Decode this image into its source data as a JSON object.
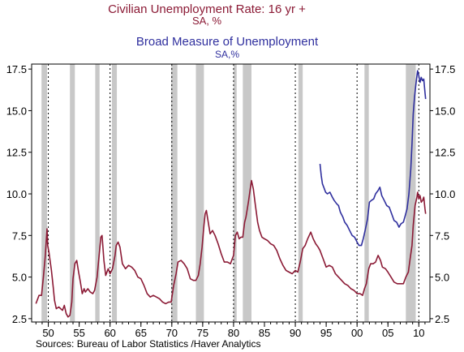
{
  "chart_data": {
    "type": "line",
    "series": [
      {
        "name": "Civilian Unemployment Rate: 16 yr +",
        "subtitle": "SA, %",
        "color": "#8b1a35",
        "points": [
          [
            1948.0,
            3.4
          ],
          [
            1948.5,
            3.9
          ],
          [
            1948.9,
            3.9
          ],
          [
            1949.2,
            5.0
          ],
          [
            1949.5,
            6.2
          ],
          [
            1949.8,
            7.9
          ],
          [
            1949.9,
            6.9
          ],
          [
            1950.1,
            6.5
          ],
          [
            1950.5,
            5.4
          ],
          [
            1950.8,
            4.4
          ],
          [
            1951.0,
            3.6
          ],
          [
            1951.3,
            3.1
          ],
          [
            1951.7,
            3.2
          ],
          [
            1952.0,
            3.1
          ],
          [
            1952.3,
            3.0
          ],
          [
            1952.6,
            3.3
          ],
          [
            1952.9,
            2.8
          ],
          [
            1953.2,
            2.6
          ],
          [
            1953.5,
            2.7
          ],
          [
            1953.8,
            3.5
          ],
          [
            1954.0,
            4.9
          ],
          [
            1954.3,
            5.8
          ],
          [
            1954.6,
            6.0
          ],
          [
            1954.9,
            5.3
          ],
          [
            1955.2,
            4.7
          ],
          [
            1955.5,
            4.0
          ],
          [
            1955.8,
            4.3
          ],
          [
            1956.0,
            4.1
          ],
          [
            1956.4,
            4.3
          ],
          [
            1956.8,
            4.1
          ],
          [
            1957.2,
            4.0
          ],
          [
            1957.5,
            4.2
          ],
          [
            1957.9,
            5.0
          ],
          [
            1958.2,
            6.2
          ],
          [
            1958.5,
            7.4
          ],
          [
            1958.7,
            7.5
          ],
          [
            1959.0,
            6.0
          ],
          [
            1959.3,
            5.1
          ],
          [
            1959.7,
            5.5
          ],
          [
            1960.0,
            5.2
          ],
          [
            1960.4,
            5.5
          ],
          [
            1960.8,
            6.3
          ],
          [
            1961.0,
            6.9
          ],
          [
            1961.3,
            7.1
          ],
          [
            1961.6,
            6.8
          ],
          [
            1962.0,
            5.8
          ],
          [
            1962.5,
            5.5
          ],
          [
            1963.0,
            5.7
          ],
          [
            1963.5,
            5.6
          ],
          [
            1964.0,
            5.4
          ],
          [
            1964.5,
            5.0
          ],
          [
            1965.0,
            4.9
          ],
          [
            1965.5,
            4.5
          ],
          [
            1966.0,
            4.0
          ],
          [
            1966.5,
            3.8
          ],
          [
            1967.0,
            3.9
          ],
          [
            1967.5,
            3.8
          ],
          [
            1968.0,
            3.7
          ],
          [
            1968.5,
            3.5
          ],
          [
            1969.0,
            3.4
          ],
          [
            1969.5,
            3.5
          ],
          [
            1969.9,
            3.5
          ],
          [
            1970.3,
            4.5
          ],
          [
            1970.7,
            5.2
          ],
          [
            1971.0,
            5.9
          ],
          [
            1971.5,
            6.0
          ],
          [
            1972.0,
            5.8
          ],
          [
            1972.5,
            5.5
          ],
          [
            1973.0,
            4.9
          ],
          [
            1973.5,
            4.8
          ],
          [
            1973.9,
            4.8
          ],
          [
            1974.3,
            5.1
          ],
          [
            1974.6,
            5.8
          ],
          [
            1974.9,
            6.8
          ],
          [
            1975.2,
            8.1
          ],
          [
            1975.4,
            8.8
          ],
          [
            1975.6,
            9.0
          ],
          [
            1975.9,
            8.3
          ],
          [
            1976.2,
            7.6
          ],
          [
            1976.6,
            7.8
          ],
          [
            1977.0,
            7.5
          ],
          [
            1977.5,
            7.0
          ],
          [
            1978.0,
            6.4
          ],
          [
            1978.5,
            5.9
          ],
          [
            1979.0,
            5.9
          ],
          [
            1979.5,
            5.8
          ],
          [
            1980.0,
            6.3
          ],
          [
            1980.3,
            7.5
          ],
          [
            1980.6,
            7.7
          ],
          [
            1980.9,
            7.3
          ],
          [
            1981.2,
            7.4
          ],
          [
            1981.5,
            7.4
          ],
          [
            1981.8,
            8.3
          ],
          [
            1982.0,
            8.6
          ],
          [
            1982.4,
            9.5
          ],
          [
            1982.7,
            10.3
          ],
          [
            1982.9,
            10.8
          ],
          [
            1983.2,
            10.3
          ],
          [
            1983.5,
            9.4
          ],
          [
            1983.9,
            8.3
          ],
          [
            1984.2,
            7.8
          ],
          [
            1984.6,
            7.4
          ],
          [
            1985.0,
            7.3
          ],
          [
            1985.5,
            7.2
          ],
          [
            1986.0,
            7.0
          ],
          [
            1986.5,
            6.9
          ],
          [
            1987.0,
            6.6
          ],
          [
            1987.5,
            6.1
          ],
          [
            1988.0,
            5.7
          ],
          [
            1988.5,
            5.4
          ],
          [
            1989.0,
            5.3
          ],
          [
            1989.5,
            5.2
          ],
          [
            1990.0,
            5.4
          ],
          [
            1990.4,
            5.3
          ],
          [
            1990.8,
            5.9
          ],
          [
            1991.2,
            6.7
          ],
          [
            1991.6,
            6.9
          ],
          [
            1992.0,
            7.3
          ],
          [
            1992.5,
            7.7
          ],
          [
            1992.9,
            7.3
          ],
          [
            1993.3,
            7.0
          ],
          [
            1993.7,
            6.8
          ],
          [
            1994.0,
            6.6
          ],
          [
            1994.5,
            6.1
          ],
          [
            1995.0,
            5.6
          ],
          [
            1995.5,
            5.7
          ],
          [
            1996.0,
            5.6
          ],
          [
            1996.5,
            5.2
          ],
          [
            1997.0,
            5.0
          ],
          [
            1997.5,
            4.8
          ],
          [
            1998.0,
            4.6
          ],
          [
            1998.5,
            4.5
          ],
          [
            1999.0,
            4.3
          ],
          [
            1999.5,
            4.2
          ],
          [
            2000.0,
            4.0
          ],
          [
            2000.5,
            4.0
          ],
          [
            2000.9,
            3.9
          ],
          [
            2001.2,
            4.3
          ],
          [
            2001.5,
            4.6
          ],
          [
            2001.9,
            5.5
          ],
          [
            2002.2,
            5.8
          ],
          [
            2002.6,
            5.8
          ],
          [
            2003.0,
            5.9
          ],
          [
            2003.4,
            6.3
          ],
          [
            2003.8,
            6.0
          ],
          [
            2004.1,
            5.6
          ],
          [
            2004.6,
            5.5
          ],
          [
            2005.0,
            5.3
          ],
          [
            2005.5,
            5.0
          ],
          [
            2006.0,
            4.7
          ],
          [
            2006.5,
            4.6
          ],
          [
            2007.0,
            4.6
          ],
          [
            2007.5,
            4.6
          ],
          [
            2007.9,
            5.0
          ],
          [
            2008.3,
            5.3
          ],
          [
            2008.6,
            6.1
          ],
          [
            2008.9,
            6.9
          ],
          [
            2009.1,
            8.1
          ],
          [
            2009.4,
            9.3
          ],
          [
            2009.7,
            9.8
          ],
          [
            2009.8,
            10.1
          ],
          [
            2010.0,
            9.7
          ],
          [
            2010.2,
            9.9
          ],
          [
            2010.4,
            9.5
          ],
          [
            2010.6,
            9.6
          ],
          [
            2010.8,
            9.8
          ],
          [
            2011.0,
            9.1
          ],
          [
            2011.1,
            8.8
          ]
        ]
      },
      {
        "name": "Broad Measure of Unemployment",
        "subtitle": "SA,%",
        "color": "#2f2f9e",
        "points": [
          [
            1994.0,
            11.8
          ],
          [
            1994.2,
            11.1
          ],
          [
            1994.4,
            10.6
          ],
          [
            1994.6,
            10.4
          ],
          [
            1994.9,
            10.1
          ],
          [
            1995.2,
            10.0
          ],
          [
            1995.6,
            10.1
          ],
          [
            1996.0,
            9.8
          ],
          [
            1996.3,
            9.6
          ],
          [
            1996.7,
            9.4
          ],
          [
            1997.0,
            9.3
          ],
          [
            1997.3,
            8.9
          ],
          [
            1997.7,
            8.6
          ],
          [
            1998.0,
            8.3
          ],
          [
            1998.4,
            8.1
          ],
          [
            1998.8,
            7.8
          ],
          [
            1999.2,
            7.5
          ],
          [
            1999.6,
            7.4
          ],
          [
            2000.0,
            7.1
          ],
          [
            2000.3,
            6.9
          ],
          [
            2000.7,
            6.9
          ],
          [
            2001.0,
            7.3
          ],
          [
            2001.3,
            7.8
          ],
          [
            2001.7,
            8.5
          ],
          [
            2002.0,
            9.5
          ],
          [
            2002.3,
            9.6
          ],
          [
            2002.7,
            9.7
          ],
          [
            2003.0,
            10.0
          ],
          [
            2003.4,
            10.2
          ],
          [
            2003.7,
            10.4
          ],
          [
            2004.0,
            9.9
          ],
          [
            2004.4,
            9.6
          ],
          [
            2004.8,
            9.3
          ],
          [
            2005.2,
            9.2
          ],
          [
            2005.6,
            8.8
          ],
          [
            2006.0,
            8.4
          ],
          [
            2006.4,
            8.3
          ],
          [
            2006.8,
            8.0
          ],
          [
            2007.1,
            8.2
          ],
          [
            2007.5,
            8.3
          ],
          [
            2007.8,
            8.7
          ],
          [
            2008.1,
            9.1
          ],
          [
            2008.4,
            10.0
          ],
          [
            2008.7,
            11.5
          ],
          [
            2008.9,
            13.0
          ],
          [
            2009.1,
            14.8
          ],
          [
            2009.3,
            15.8
          ],
          [
            2009.5,
            16.5
          ],
          [
            2009.7,
            17.1
          ],
          [
            2009.8,
            17.4
          ],
          [
            2010.0,
            17.1
          ],
          [
            2010.2,
            16.7
          ],
          [
            2010.4,
            17.0
          ],
          [
            2010.6,
            16.8
          ],
          [
            2010.8,
            16.9
          ],
          [
            2011.0,
            16.1
          ],
          [
            2011.1,
            15.7
          ]
        ]
      }
    ],
    "recessions": [
      [
        1948.9,
        1949.8
      ],
      [
        1953.5,
        1954.3
      ],
      [
        1957.6,
        1958.3
      ],
      [
        1960.3,
        1961.1
      ],
      [
        1969.9,
        1970.9
      ],
      [
        1973.9,
        1975.2
      ],
      [
        1980.0,
        1980.5
      ],
      [
        1981.5,
        1982.9
      ],
      [
        1990.5,
        1991.2
      ],
      [
        2001.2,
        2001.9
      ],
      [
        2007.9,
        2009.5
      ]
    ],
    "decade_lines": [
      1950,
      1960,
      1970,
      1980,
      1990,
      2000,
      2010
    ],
    "xlim": [
      1947.3,
      2011.8
    ],
    "ylim": [
      2.3,
      17.8
    ],
    "y_ticks": [
      2.5,
      5.0,
      7.5,
      10.0,
      12.5,
      15.0,
      17.5
    ],
    "y_tick_labels": [
      "2.5",
      "5.0",
      "7.5",
      "10.0",
      "12.5",
      "15.0",
      "17.5"
    ],
    "x_ticks": [
      1950,
      1955,
      1960,
      1965,
      1970,
      1975,
      1980,
      1985,
      1990,
      1995,
      2000,
      2005,
      2010
    ],
    "x_tick_labels": [
      "50",
      "55",
      "60",
      "65",
      "70",
      "75",
      "80",
      "85",
      "90",
      "95",
      "00",
      "05",
      "10"
    ],
    "source": "Sources:  Bureau of Labor Statistics /Haver Analytics",
    "recession_color": "#c8c8c8"
  }
}
